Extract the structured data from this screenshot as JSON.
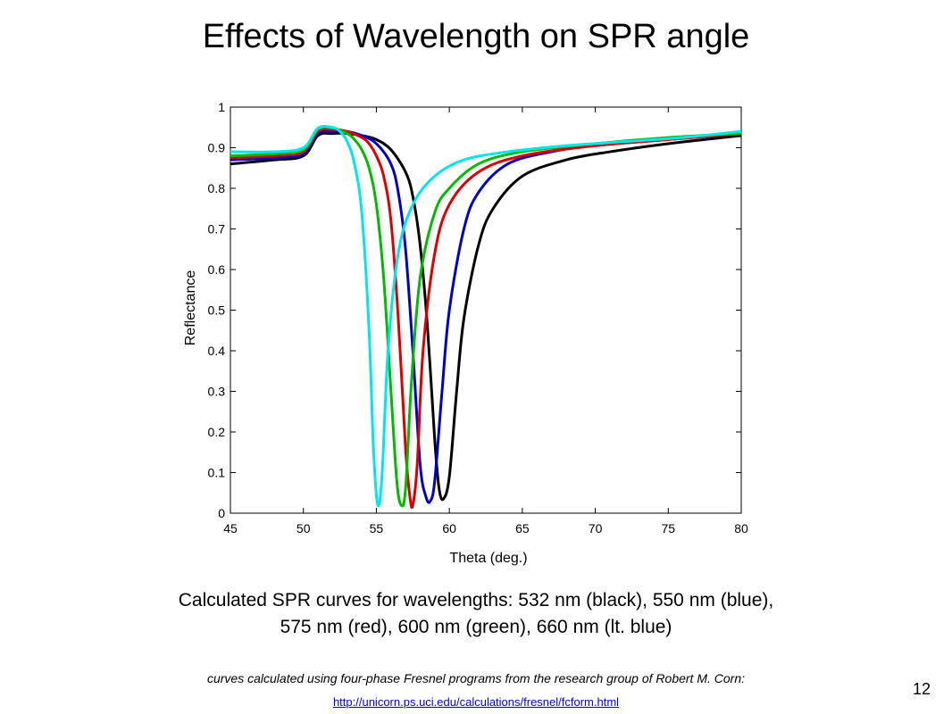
{
  "slide": {
    "title": "Effects of Wavelength on SPR angle",
    "caption_line1": "Calculated SPR curves for wavelengths: 532 nm (black), 550 nm (blue),",
    "caption_line2": "575 nm (red), 600 nm (green), 660 nm (lt. blue)",
    "credit": "curves calculated using four-phase Fresnel programs from the research group of Robert M. Corn:",
    "link": "http://unicorn.ps.uci.edu/calculations/fresnel/fcform.html",
    "page_number": "12"
  },
  "chart_data": {
    "type": "line",
    "title": "",
    "xlabel": "Theta (deg.)",
    "ylabel": "Reflectance",
    "xlim": [
      45,
      80
    ],
    "ylim": [
      0,
      1
    ],
    "xticks": [
      45,
      50,
      55,
      60,
      65,
      70,
      75,
      80
    ],
    "yticks": [
      0,
      0.1,
      0.2,
      0.3,
      0.4,
      0.5,
      0.6,
      0.7,
      0.8,
      0.9,
      1
    ],
    "grid": false,
    "series": [
      {
        "color": "#000000",
        "x": [
          45,
          48,
          50,
          51,
          52,
          53,
          54,
          55,
          56,
          57,
          57.5,
          58,
          58.5,
          59,
          59.3,
          59.6,
          60,
          60.5,
          61,
          62,
          63,
          65,
          68,
          71,
          75,
          80
        ],
        "y": [
          0.86,
          0.87,
          0.88,
          0.93,
          0.935,
          0.935,
          0.93,
          0.92,
          0.895,
          0.84,
          0.78,
          0.66,
          0.46,
          0.18,
          0.06,
          0.035,
          0.09,
          0.3,
          0.48,
          0.66,
          0.75,
          0.83,
          0.87,
          0.89,
          0.91,
          0.93
        ]
      },
      {
        "color": "#0000cc",
        "x": [
          45,
          48,
          50,
          51,
          52,
          53,
          54,
          55,
          56,
          56.5,
          57,
          57.5,
          58,
          58.4,
          58.7,
          59,
          59.5,
          60,
          61,
          62,
          64,
          67,
          70,
          75,
          80
        ],
        "y": [
          0.87,
          0.875,
          0.885,
          0.935,
          0.94,
          0.94,
          0.93,
          0.91,
          0.86,
          0.79,
          0.65,
          0.4,
          0.12,
          0.04,
          0.03,
          0.08,
          0.3,
          0.5,
          0.7,
          0.79,
          0.86,
          0.89,
          0.905,
          0.92,
          0.935
        ]
      },
      {
        "color": "#dd0000",
        "x": [
          45,
          48,
          50,
          51,
          52,
          53,
          54,
          54.5,
          55,
          55.5,
          56,
          56.5,
          57,
          57.3,
          57.5,
          57.8,
          58.2,
          59,
          60,
          62,
          65,
          70,
          75,
          80
        ],
        "y": [
          0.875,
          0.88,
          0.89,
          0.94,
          0.945,
          0.94,
          0.925,
          0.91,
          0.88,
          0.83,
          0.72,
          0.48,
          0.16,
          0.04,
          0.02,
          0.12,
          0.4,
          0.64,
          0.76,
          0.84,
          0.88,
          0.905,
          0.92,
          0.935
        ]
      },
      {
        "color": "#00bb00",
        "x": [
          45,
          48,
          50,
          51,
          52,
          53,
          53.5,
          54,
          54.5,
          55,
          55.5,
          56,
          56.4,
          56.7,
          57,
          57.4,
          58,
          59,
          60,
          62,
          65,
          70,
          75,
          80
        ],
        "y": [
          0.88,
          0.885,
          0.895,
          0.945,
          0.948,
          0.935,
          0.92,
          0.895,
          0.85,
          0.76,
          0.58,
          0.3,
          0.08,
          0.02,
          0.06,
          0.32,
          0.58,
          0.74,
          0.8,
          0.86,
          0.89,
          0.91,
          0.925,
          0.935
        ]
      },
      {
        "color": "#00e5ee",
        "x": [
          45,
          48,
          50,
          51,
          52,
          52.5,
          53,
          53.5,
          54,
          54.5,
          54.8,
          55.1,
          55.4,
          55.8,
          56.5,
          57.5,
          59,
          61,
          64,
          68,
          72,
          76,
          80
        ],
        "y": [
          0.89,
          0.89,
          0.9,
          0.948,
          0.95,
          0.94,
          0.915,
          0.86,
          0.74,
          0.45,
          0.16,
          0.02,
          0.1,
          0.4,
          0.64,
          0.76,
          0.83,
          0.87,
          0.89,
          0.905,
          0.915,
          0.925,
          0.94
        ]
      }
    ]
  }
}
